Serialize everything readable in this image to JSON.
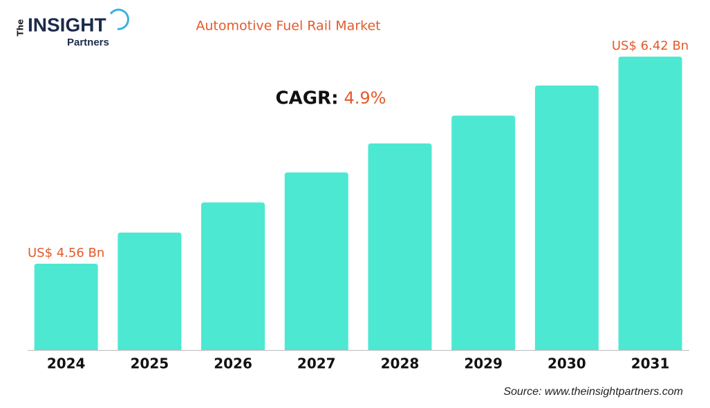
{
  "logo": {
    "the": "The",
    "insight": "INSIGHT",
    "partners": "Partners"
  },
  "chart_data": {
    "type": "bar",
    "title": "Automotive Fuel Rail Market",
    "cagr_label": "CAGR:",
    "cagr": "4.9%",
    "categories": [
      "2024",
      "2025",
      "2026",
      "2027",
      "2028",
      "2029",
      "2030",
      "2031"
    ],
    "values": [
      4.56,
      4.84,
      5.11,
      5.38,
      5.64,
      5.89,
      6.16,
      6.42
    ],
    "value_labels": [
      "US$ 4.56 Bn",
      null,
      null,
      null,
      null,
      null,
      null,
      "US$ 6.42 Bn"
    ],
    "color": "#4de8d1",
    "label_color": "#e35a2b",
    "source": "Source: www.theinsightpartners.com"
  }
}
